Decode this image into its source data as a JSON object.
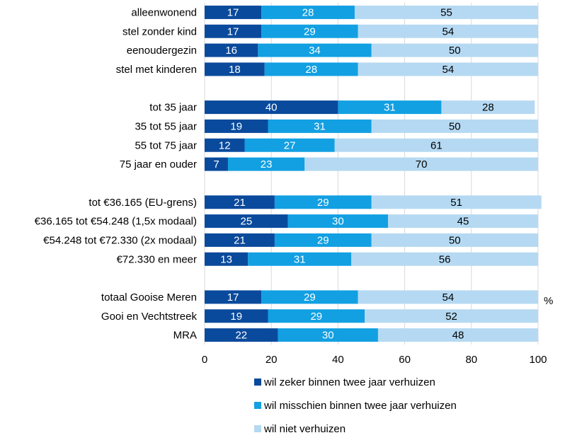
{
  "chart_data": {
    "type": "bar",
    "orientation": "horizontal",
    "stacked": true,
    "categories": [
      "alleenwonend",
      "stel zonder kind",
      "eenoudergezin",
      "stel met kinderen",
      "tot 35 jaar",
      "35 tot 55 jaar",
      "55 tot 75 jaar",
      "75 jaar en ouder",
      "tot €36.165 (EU-grens)",
      "€36.165 tot €54.248 (1,5x modaal)",
      "€54.248 tot €72.330 (2x modaal)",
      "€72.330 en meer",
      "totaal Gooise Meren",
      "Gooi en Vechtstreek",
      "MRA"
    ],
    "series": [
      {
        "name": "wil zeker binnen twee jaar verhuizen",
        "color": "#0a4a9c",
        "label_color": "#ffffff",
        "values": [
          17,
          17,
          16,
          18,
          40,
          19,
          12,
          7,
          21,
          25,
          21,
          13,
          17,
          19,
          22
        ]
      },
      {
        "name": "wil misschien binnen twee jaar verhuizen",
        "color": "#12a0e2",
        "label_color": "#ffffff",
        "values": [
          28,
          29,
          34,
          28,
          31,
          31,
          27,
          23,
          29,
          30,
          29,
          31,
          29,
          29,
          30
        ]
      },
      {
        "name": "wil niet verhuizen",
        "color": "#b5d9f2",
        "label_color": "#000000",
        "values": [
          55,
          54,
          50,
          54,
          28,
          50,
          61,
          70,
          51,
          45,
          50,
          56,
          54,
          52,
          48
        ]
      }
    ],
    "groups": [
      [
        0,
        1,
        2,
        3
      ],
      [
        4,
        5,
        6,
        7
      ],
      [
        8,
        9,
        10,
        11
      ],
      [
        12,
        13,
        14
      ]
    ],
    "xlim": [
      0,
      100
    ],
    "xticks": [
      "0",
      "20",
      "40",
      "60",
      "80",
      "100"
    ],
    "unit": "%",
    "grid": "vertical",
    "legend": "bottom"
  }
}
